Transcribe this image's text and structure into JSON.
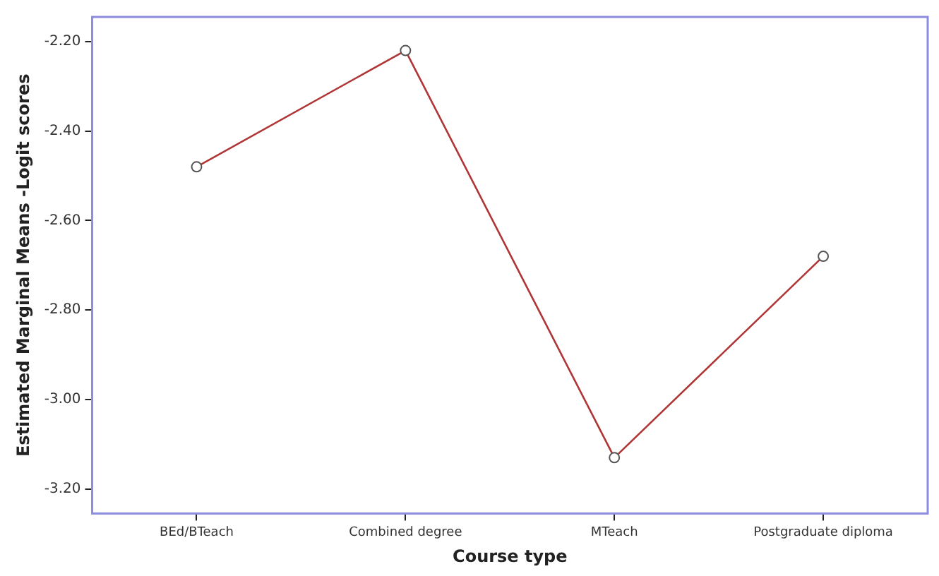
{
  "chart_data": {
    "type": "line",
    "xlabel": "Course type",
    "ylabel": "Estimated Marginal Means -Logit scores",
    "categories": [
      "BEd/BTeach",
      "Combined degree",
      "MTeach",
      "Postgraduate diploma"
    ],
    "series": [
      {
        "color": "#b03535",
        "values": [
          -2.48,
          -2.22,
          -3.13,
          -2.68
        ]
      }
    ],
    "ylim": [
      -3.255,
      -2.145
    ],
    "yticks": [
      {
        "value": -3.2,
        "label": "-3.20"
      },
      {
        "value": -3.0,
        "label": "-3.00"
      },
      {
        "value": -2.8,
        "label": "-2.80"
      },
      {
        "value": -2.6,
        "label": "-2.60"
      },
      {
        "value": -2.4,
        "label": "-2.40"
      },
      {
        "value": -2.2,
        "label": "-2.20"
      }
    ],
    "grid": false,
    "legend": false,
    "marker": "circle",
    "line_style": "solid"
  }
}
